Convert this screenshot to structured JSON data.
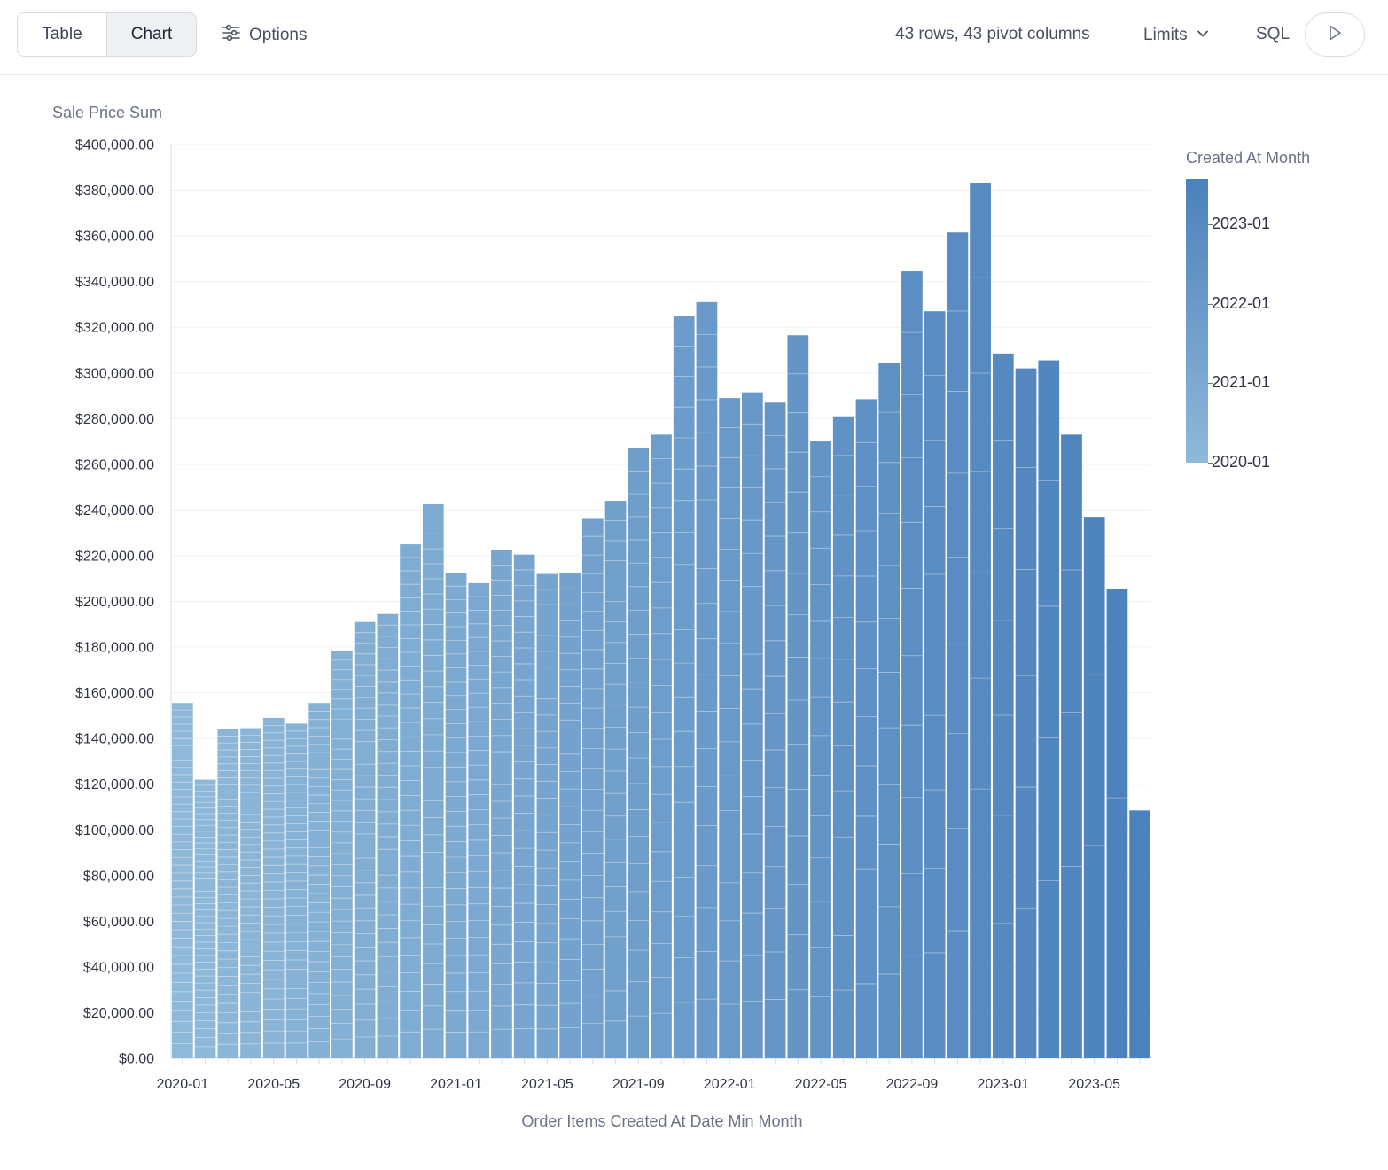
{
  "toolbar": {
    "view_tabs": [
      {
        "label": "Table",
        "active": false
      },
      {
        "label": "Chart",
        "active": true
      }
    ],
    "options_label": "Options",
    "rows_info": "43 rows, 43 pivot columns",
    "limits_label": "Limits",
    "sql_label": "SQL",
    "run_icon": "play-icon",
    "options_icon": "sliders-icon",
    "limits_icon": "chevron-down-icon"
  },
  "colors": {
    "bar_start": "#8fb9d9",
    "bar_end": "#4c81bc",
    "gridline": "#eef0f3",
    "axis": "#d9dce1"
  },
  "chart_data": {
    "type": "bar",
    "stacked": true,
    "ylabel": "Sale Price Sum",
    "xlabel": "Order Items Created At Date Min Month",
    "ylim": [
      0,
      400000
    ],
    "y_ticks": [
      "$0.00",
      "$20,000.00",
      "$40,000.00",
      "$60,000.00",
      "$80,000.00",
      "$100,000.00",
      "$120,000.00",
      "$140,000.00",
      "$160,000.00",
      "$180,000.00",
      "$200,000.00",
      "$220,000.00",
      "$240,000.00",
      "$260,000.00",
      "$280,000.00",
      "$300,000.00",
      "$320,000.00",
      "$340,000.00",
      "$360,000.00",
      "$380,000.00",
      "$400,000.00"
    ],
    "x_tick_labels": [
      "2020-01",
      "2020-05",
      "2020-09",
      "2021-01",
      "2021-05",
      "2021-09",
      "2022-01",
      "2022-05",
      "2022-09",
      "2023-01",
      "2023-05"
    ],
    "categories": [
      "2020-01",
      "2020-02",
      "2020-03",
      "2020-04",
      "2020-05",
      "2020-06",
      "2020-07",
      "2020-08",
      "2020-09",
      "2020-10",
      "2020-11",
      "2020-12",
      "2021-01",
      "2021-02",
      "2021-03",
      "2021-04",
      "2021-05",
      "2021-06",
      "2021-07",
      "2021-08",
      "2021-09",
      "2021-10",
      "2021-11",
      "2021-12",
      "2022-01",
      "2022-02",
      "2022-03",
      "2022-04",
      "2022-05",
      "2022-06",
      "2022-07",
      "2022-08",
      "2022-09",
      "2022-10",
      "2022-11",
      "2022-12",
      "2023-01",
      "2023-02",
      "2023-03",
      "2023-04",
      "2023-05",
      "2023-06",
      "2023-07"
    ],
    "totals": [
      155500,
      122000,
      144000,
      144500,
      149000,
      146500,
      155500,
      178500,
      191000,
      194500,
      225000,
      242500,
      212500,
      208000,
      222500,
      220500,
      212000,
      212500,
      236500,
      244000,
      267000,
      273000,
      325000,
      331000,
      289000,
      291500,
      287000,
      316500,
      270000,
      281000,
      288500,
      304500,
      344500,
      327000,
      361500,
      383000,
      308500,
      302000,
      305500,
      273000,
      237000,
      205500,
      108500
    ],
    "legend": {
      "title": "Created At Month",
      "ticks": [
        "2023-01",
        "2022-01",
        "2021-01",
        "2020-01"
      ]
    }
  }
}
